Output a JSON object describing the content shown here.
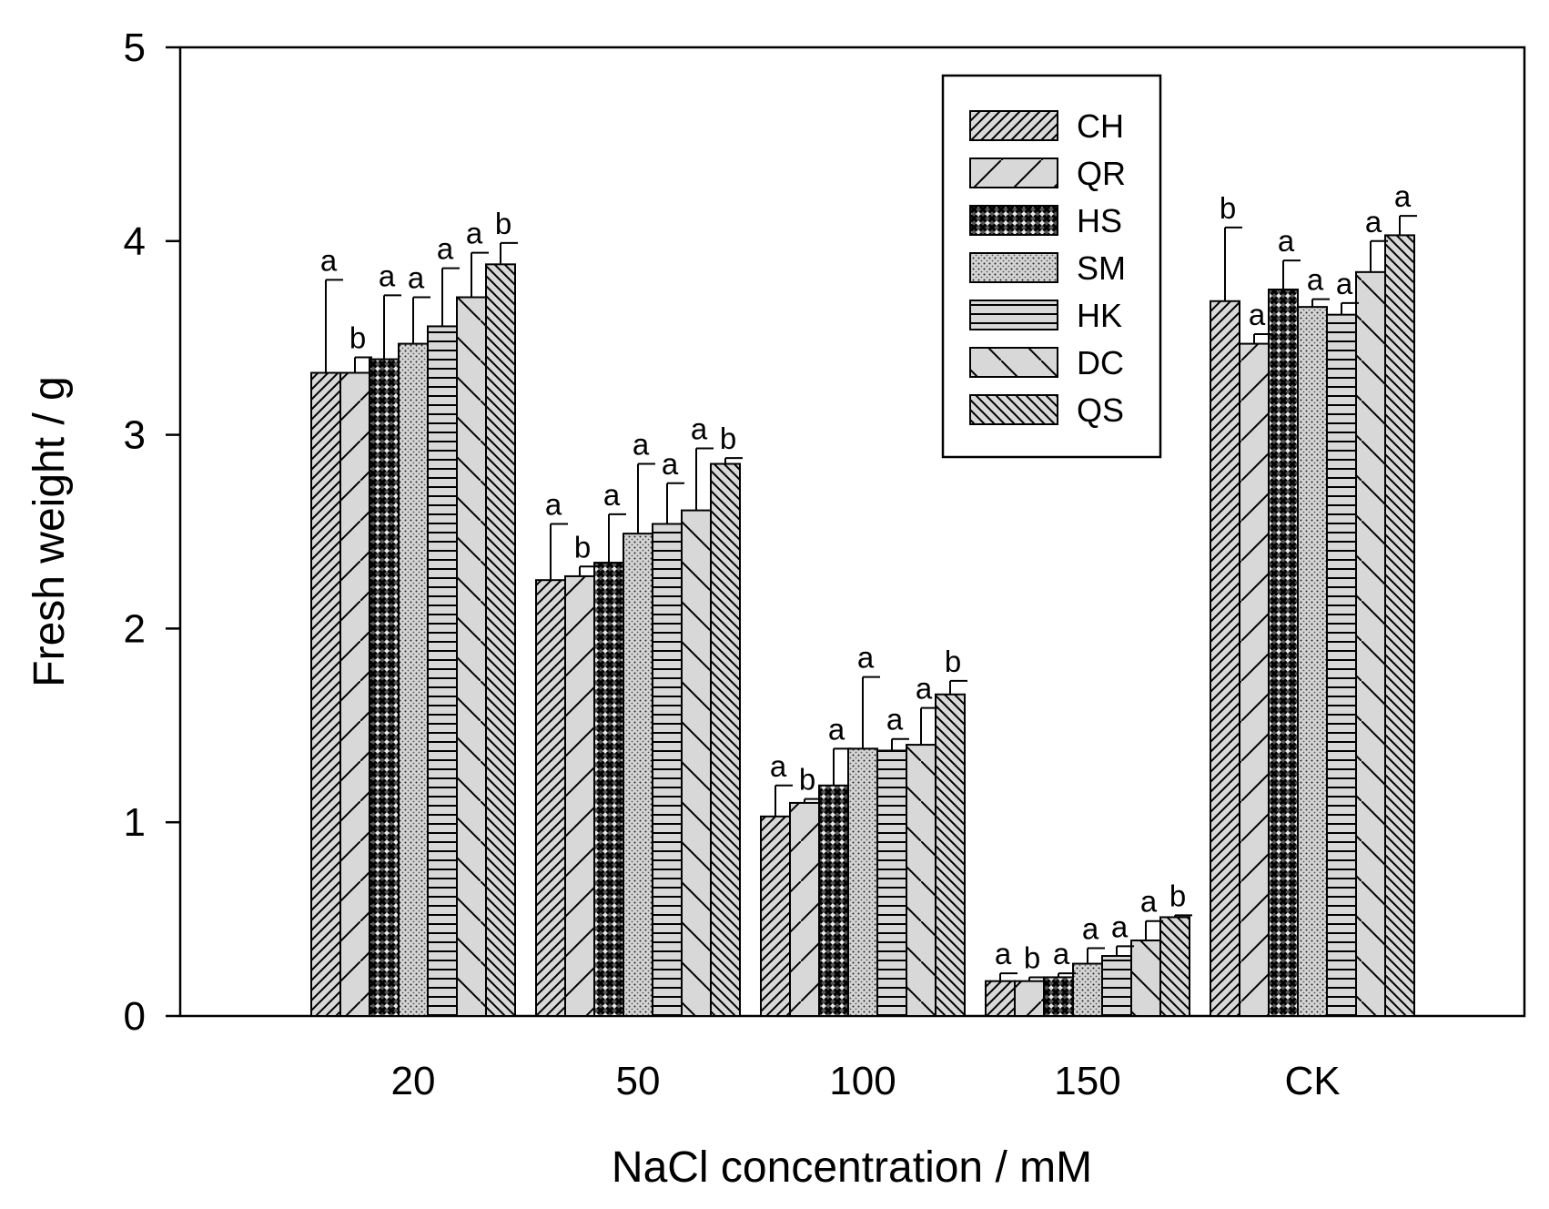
{
  "chart_data": {
    "type": "bar",
    "title": "",
    "xlabel": "NaCl concentration / mM",
    "ylabel": "Fresh weight / g",
    "ylim": [
      0,
      5
    ],
    "yticks": [
      "0",
      "1",
      "2",
      "3",
      "4",
      "5"
    ],
    "categories": [
      "20",
      "50",
      "100",
      "150",
      "CK"
    ],
    "legend_position": "top-right",
    "grid": false,
    "series": [
      {
        "name": "CH",
        "pattern": "hatch-diag",
        "values": [
          3.32,
          2.25,
          1.03,
          0.18,
          3.69
        ],
        "errors": [
          0.48,
          0.29,
          0.16,
          0.04,
          0.38
        ],
        "letters": [
          "a",
          "a",
          "a",
          "a",
          "b"
        ]
      },
      {
        "name": "QR",
        "pattern": "hatch-diag-wide",
        "values": [
          3.32,
          2.27,
          1.1,
          0.18,
          3.47
        ],
        "errors": [
          0.08,
          0.05,
          0.02,
          0.02,
          0.05
        ],
        "letters": [
          "b",
          "b",
          "b",
          "b",
          "a"
        ]
      },
      {
        "name": "HS",
        "pattern": "crosshatch",
        "values": [
          3.39,
          2.34,
          1.19,
          0.2,
          3.75
        ],
        "errors": [
          0.33,
          0.25,
          0.19,
          0.02,
          0.15
        ],
        "letters": [
          "a",
          "a",
          "a",
          "a",
          "a"
        ]
      },
      {
        "name": "SM",
        "pattern": "dots",
        "values": [
          3.47,
          2.49,
          1.38,
          0.27,
          3.66
        ],
        "errors": [
          0.24,
          0.36,
          0.37,
          0.08,
          0.04
        ],
        "letters": [
          "a",
          "a",
          "a",
          "a",
          "a"
        ]
      },
      {
        "name": "HK",
        "pattern": "horizontal",
        "values": [
          3.56,
          2.54,
          1.37,
          0.31,
          3.62
        ],
        "errors": [
          0.3,
          0.21,
          0.06,
          0.05,
          0.06
        ],
        "letters": [
          "a",
          "a",
          "a",
          "a",
          "a"
        ]
      },
      {
        "name": "DC",
        "pattern": "hatch-antidiag-wide",
        "values": [
          3.71,
          2.61,
          1.4,
          0.39,
          3.84
        ],
        "errors": [
          0.23,
          0.32,
          0.19,
          0.1,
          0.16
        ],
        "letters": [
          "a",
          "a",
          "a",
          "a",
          "a"
        ]
      },
      {
        "name": "QS",
        "pattern": "hatch-antidiag",
        "values": [
          3.88,
          2.85,
          1.66,
          0.51,
          4.03
        ],
        "errors": [
          0.11,
          0.03,
          0.07,
          0.01,
          0.1
        ],
        "letters": [
          "b",
          "b",
          "b",
          "b",
          "a"
        ]
      }
    ]
  }
}
